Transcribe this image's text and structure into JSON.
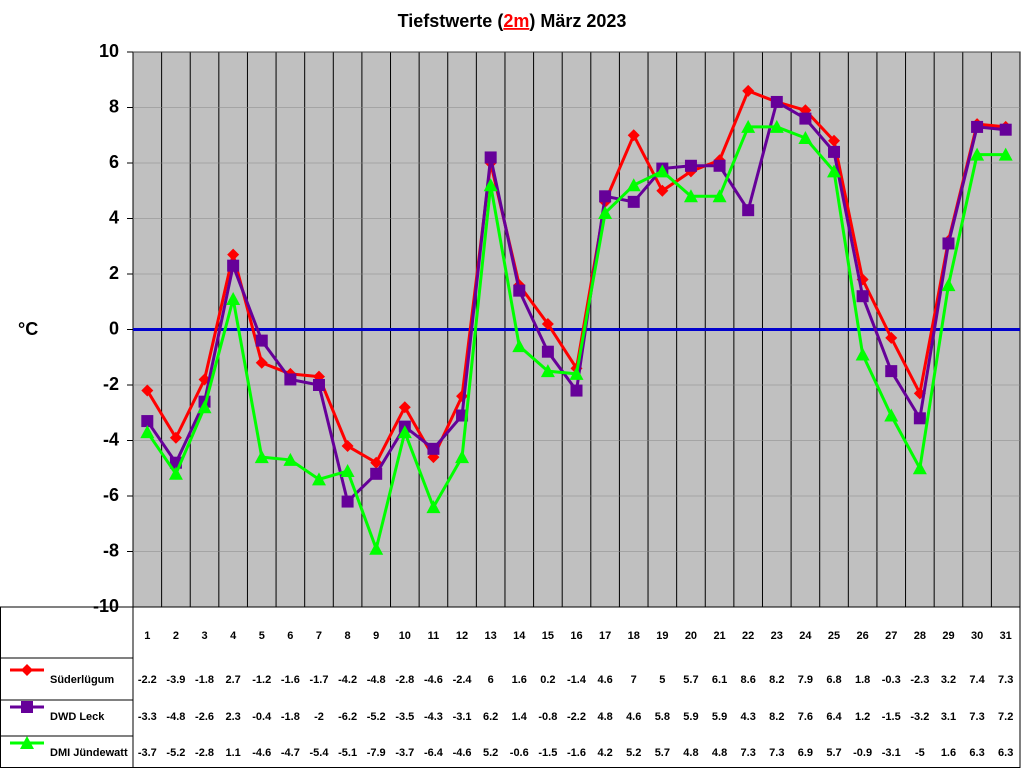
{
  "chart_data": {
    "type": "line",
    "title": [
      "Tiefstwerte (",
      "2m",
      ") März 2023"
    ],
    "title_highlight_color": "#ff0000",
    "y_label": "°C",
    "categories": [
      "1",
      "2",
      "3",
      "4",
      "5",
      "6",
      "7",
      "8",
      "9",
      "10",
      "11",
      "12",
      "13",
      "14",
      "15",
      "16",
      "17",
      "18",
      "19",
      "20",
      "21",
      "22",
      "23",
      "24",
      "25",
      "26",
      "27",
      "28",
      "29",
      "30",
      "31"
    ],
    "ylim": [
      -10,
      10
    ],
    "yticks": [
      -10,
      -8,
      -6,
      -4,
      -2,
      0,
      2,
      4,
      6,
      8,
      10
    ],
    "grid": true,
    "plot_background": "#c0c0c0",
    "zero_line_color": "#0000cc",
    "series": [
      {
        "name": "Süderlügum",
        "color": "#ff0000",
        "marker": "diamond",
        "values": [
          -2.2,
          -3.9,
          -1.8,
          2.7,
          -1.2,
          -1.6,
          -1.7,
          -4.2,
          -4.8,
          -2.8,
          -4.6,
          -2.4,
          6,
          1.6,
          0.2,
          -1.4,
          4.6,
          7,
          5,
          5.7,
          6.1,
          8.6,
          8.2,
          7.9,
          6.8,
          1.8,
          -0.3,
          -2.3,
          3.2,
          7.4,
          7.3
        ]
      },
      {
        "name": "DWD Leck",
        "color": "#660099",
        "marker": "square",
        "values": [
          -3.3,
          -4.8,
          -2.6,
          2.3,
          -0.4,
          -1.8,
          -2,
          -6.2,
          -5.2,
          -3.5,
          -4.3,
          -3.1,
          6.2,
          1.4,
          -0.8,
          -2.2,
          4.8,
          4.6,
          5.8,
          5.9,
          5.9,
          4.3,
          8.2,
          7.6,
          6.4,
          1.2,
          -1.5,
          -3.2,
          3.1,
          7.3,
          7.2
        ]
      },
      {
        "name": "DMI Jündewatt",
        "color": "#00ff00",
        "marker": "triangle",
        "values": [
          -3.7,
          -5.2,
          -2.8,
          1.1,
          -4.6,
          -4.7,
          -5.4,
          -5.1,
          -7.9,
          -3.7,
          -6.4,
          -4.6,
          5.2,
          -0.6,
          -1.5,
          -1.6,
          4.2,
          5.2,
          5.7,
          4.8,
          4.8,
          7.3,
          7.3,
          6.9,
          5.7,
          -0.9,
          -3.1,
          -5,
          1.6,
          6.3,
          6.3
        ]
      }
    ]
  }
}
